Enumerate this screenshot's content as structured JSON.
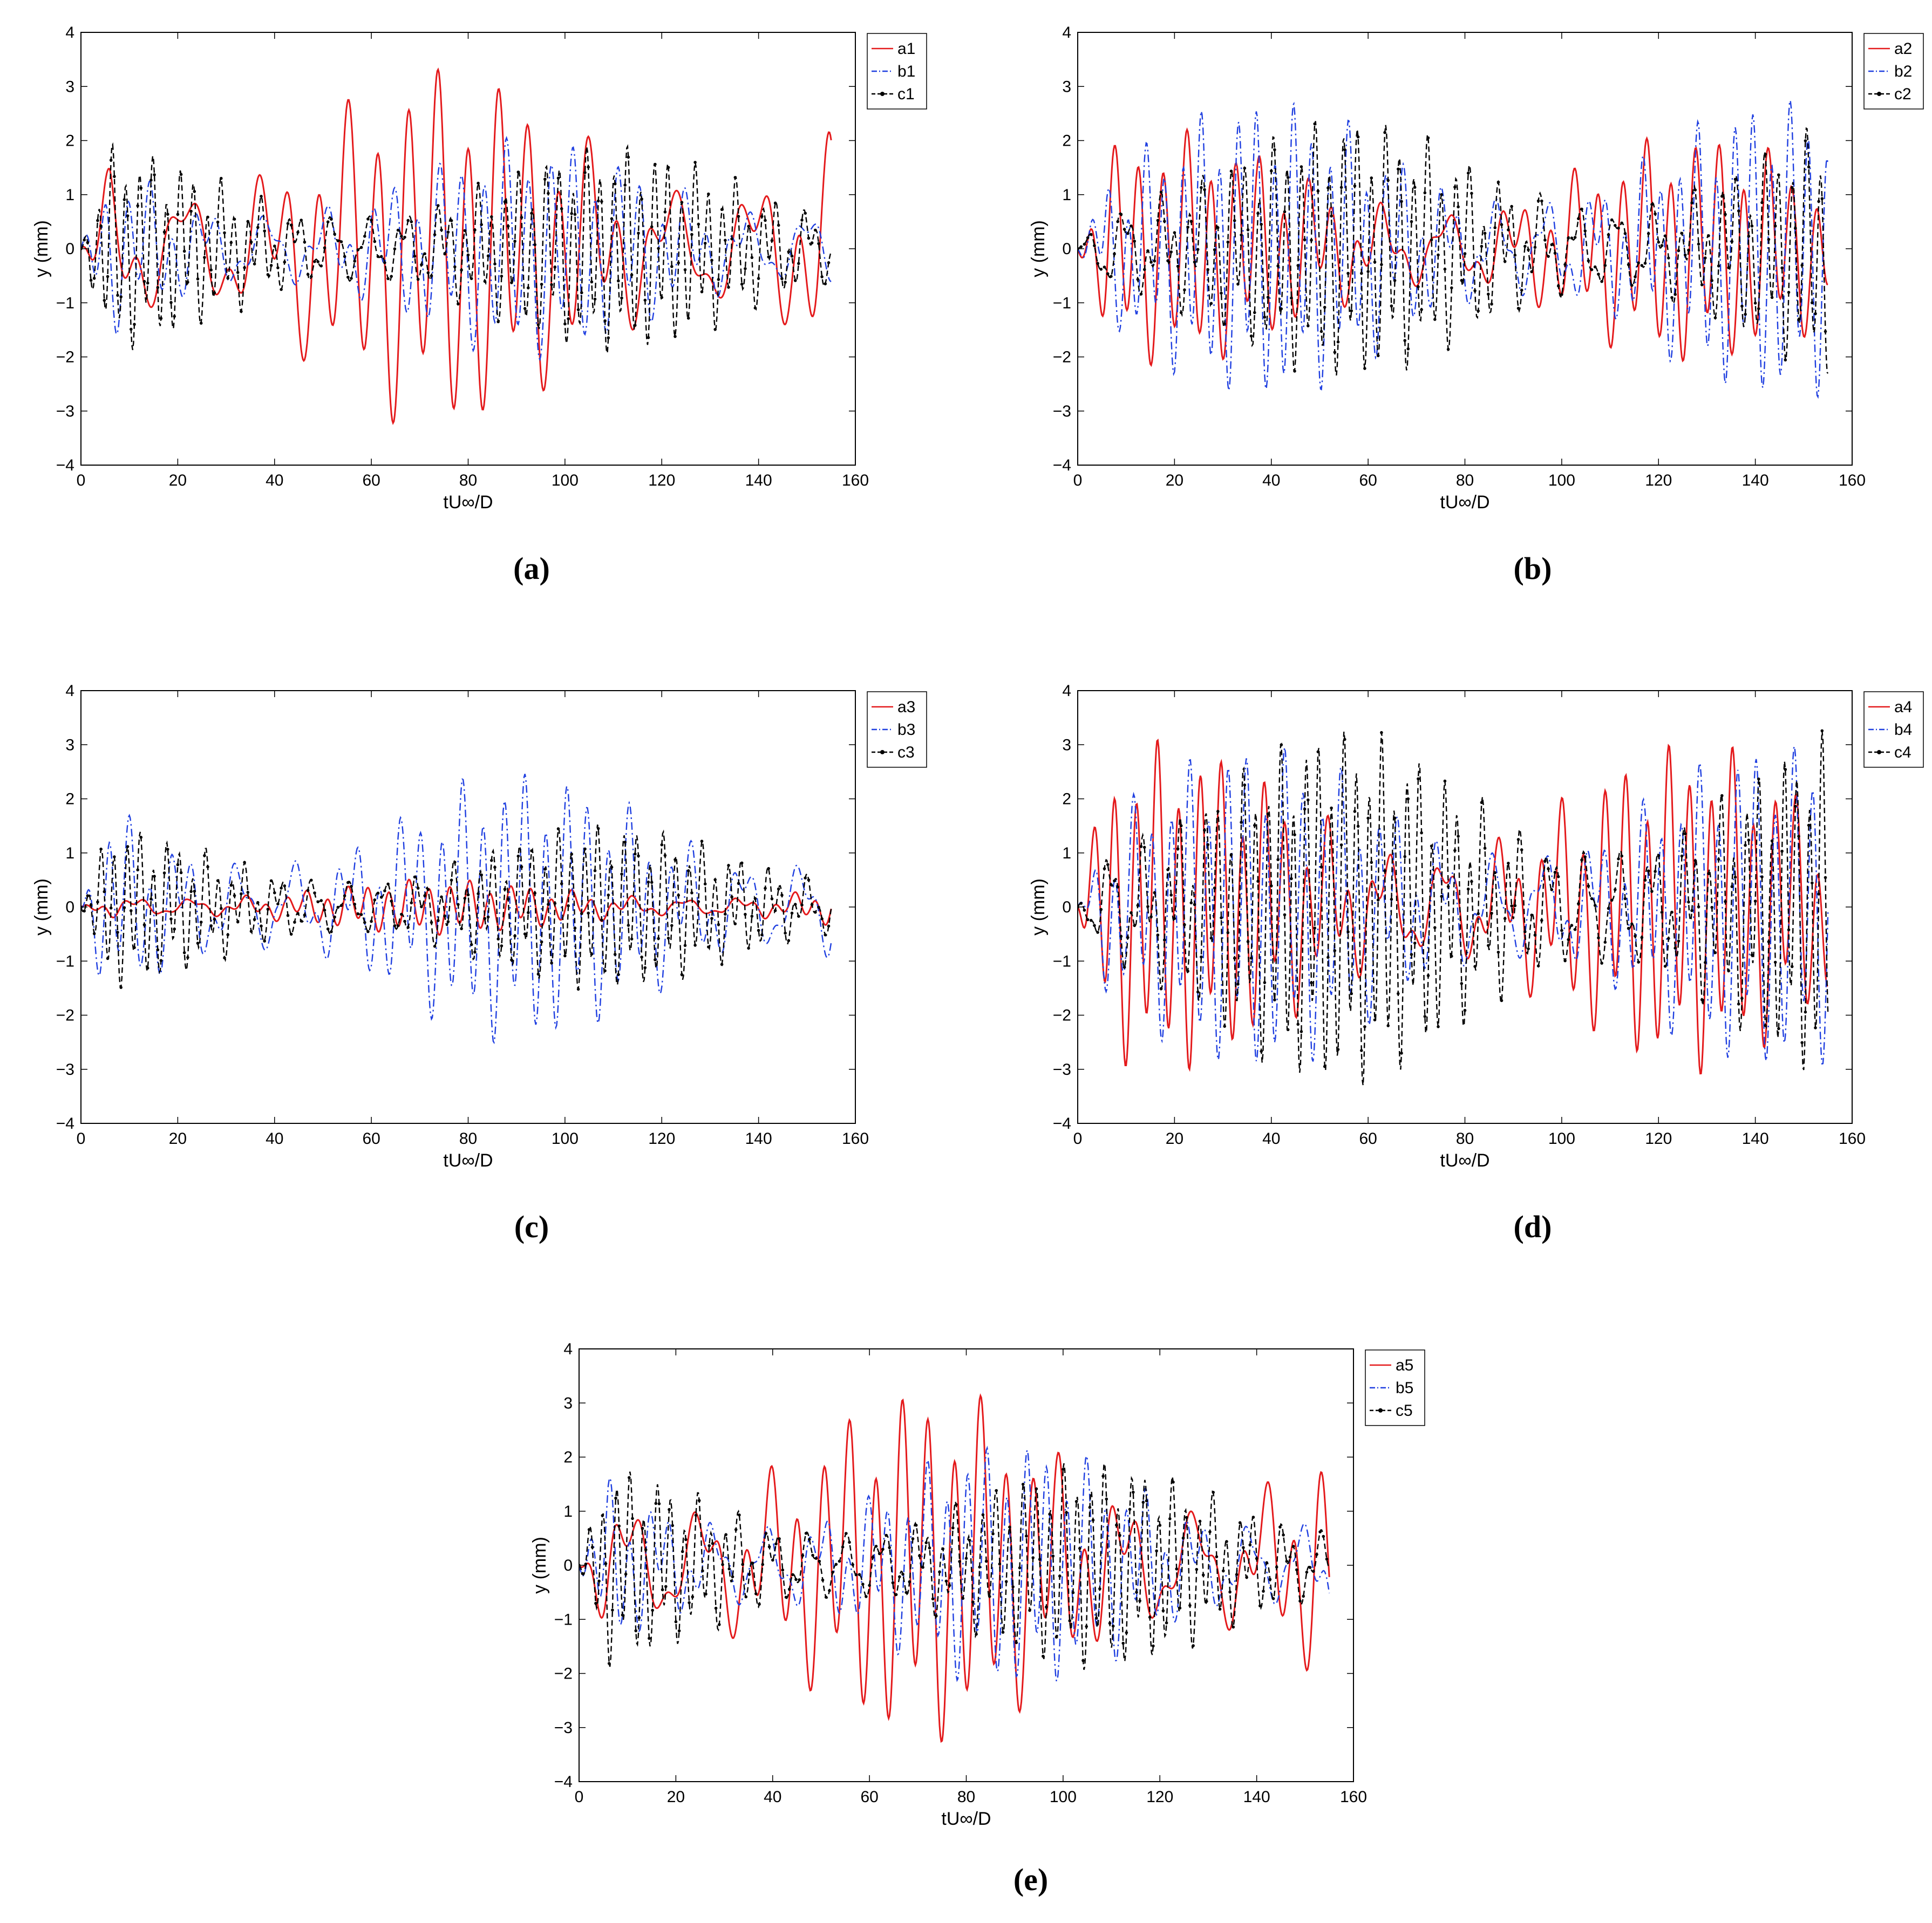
{
  "figure": {
    "captions": [
      "(a)",
      "(b)",
      "(c)",
      "(d)",
      "(e)"
    ]
  },
  "chart_data": [
    {
      "type": "line",
      "panel": "a",
      "xlabel": "tU∞/D",
      "ylabel": "y (mm)",
      "xlim": [
        0,
        160
      ],
      "ylim": [
        -4,
        4
      ],
      "xticks": [
        "0",
        "20",
        "40",
        "60",
        "80",
        "100",
        "120",
        "140",
        "160"
      ],
      "yticks": [
        "4",
        "3",
        "2",
        "1",
        "0",
        "−1",
        "−2",
        "−3",
        "−4"
      ],
      "legend_position": "top-right",
      "series": [
        {
          "name": "a1",
          "color": "#e41a1c",
          "style": "solid",
          "amplitude": 2.7,
          "period": 6.2,
          "seed": 1
        },
        {
          "name": "b1",
          "color": "#1f3fe0",
          "style": "dashdot",
          "amplitude": 1.6,
          "period": 4.6,
          "seed": 2
        },
        {
          "name": "c1",
          "color": "#000000",
          "style": "dashed-marker",
          "amplitude": 1.5,
          "period": 2.8,
          "seed": 3
        }
      ]
    },
    {
      "type": "line",
      "panel": "b",
      "xlabel": "tU∞/D",
      "ylabel": "y (mm)",
      "xlim": [
        0,
        160
      ],
      "ylim": [
        -4,
        4
      ],
      "xticks": [
        "0",
        "20",
        "40",
        "60",
        "80",
        "100",
        "120",
        "140",
        "160"
      ],
      "yticks": [
        "4",
        "3",
        "2",
        "1",
        "0",
        "−1",
        "−2",
        "−3",
        "−4"
      ],
      "legend_position": "top-right",
      "series": [
        {
          "name": "a2",
          "color": "#e41a1c",
          "style": "solid",
          "amplitude": 1.7,
          "period": 5.0,
          "seed": 4
        },
        {
          "name": "b2",
          "color": "#1f3fe0",
          "style": "dashdot",
          "amplitude": 2.2,
          "period": 3.8,
          "seed": 5
        },
        {
          "name": "c2",
          "color": "#000000",
          "style": "dashed-marker",
          "amplitude": 1.9,
          "period": 2.9,
          "seed": 6
        }
      ]
    },
    {
      "type": "line",
      "panel": "c",
      "xlabel": "tU∞/D",
      "ylabel": "y (mm)",
      "xlim": [
        0,
        160
      ],
      "ylim": [
        -4,
        4
      ],
      "xticks": [
        "0",
        "20",
        "40",
        "60",
        "80",
        "100",
        "120",
        "140",
        "160"
      ],
      "yticks": [
        "4",
        "3",
        "2",
        "1",
        "0",
        "−1",
        "−2",
        "−3",
        "−4"
      ],
      "legend_position": "top-right",
      "series": [
        {
          "name": "a3",
          "color": "#e41a1c",
          "style": "solid",
          "amplitude": 0.4,
          "period": 4.2,
          "seed": 7
        },
        {
          "name": "b3",
          "color": "#1f3fe0",
          "style": "dashdot",
          "amplitude": 2.0,
          "period": 4.3,
          "seed": 8
        },
        {
          "name": "c3",
          "color": "#000000",
          "style": "dashed-marker",
          "amplitude": 1.2,
          "period": 2.7,
          "seed": 9
        }
      ]
    },
    {
      "type": "line",
      "panel": "d",
      "xlabel": "tU∞/D",
      "ylabel": "y (mm)",
      "xlim": [
        0,
        160
      ],
      "ylim": [
        -4,
        4
      ],
      "xticks": [
        "0",
        "20",
        "40",
        "60",
        "80",
        "100",
        "120",
        "140",
        "160"
      ],
      "yticks": [
        "4",
        "3",
        "2",
        "1",
        "0",
        "−1",
        "−2",
        "−3",
        "−4"
      ],
      "legend_position": "top-right",
      "series": [
        {
          "name": "a4",
          "color": "#e41a1c",
          "style": "solid",
          "amplitude": 2.4,
          "period": 4.4,
          "seed": 10
        },
        {
          "name": "b4",
          "color": "#1f3fe0",
          "style": "dashdot",
          "amplitude": 2.4,
          "period": 3.9,
          "seed": 11
        },
        {
          "name": "c4",
          "color": "#000000",
          "style": "dashed-marker",
          "amplitude": 2.6,
          "period": 2.6,
          "seed": 12
        }
      ]
    },
    {
      "type": "line",
      "panel": "e",
      "xlabel": "tU∞/D",
      "ylabel": "y (mm)",
      "xlim": [
        0,
        160
      ],
      "ylim": [
        -4,
        4
      ],
      "xticks": [
        "0",
        "20",
        "40",
        "60",
        "80",
        "100",
        "120",
        "140",
        "160"
      ],
      "yticks": [
        "4",
        "3",
        "2",
        "1",
        "0",
        "−1",
        "−2",
        "−3",
        "−4"
      ],
      "legend_position": "top-right",
      "series": [
        {
          "name": "a5",
          "color": "#e41a1c",
          "style": "solid",
          "amplitude": 2.6,
          "period": 5.4,
          "seed": 13
        },
        {
          "name": "b5",
          "color": "#1f3fe0",
          "style": "dashdot",
          "amplitude": 1.8,
          "period": 4.1,
          "seed": 14
        },
        {
          "name": "c5",
          "color": "#000000",
          "style": "dashed-marker",
          "amplitude": 1.5,
          "period": 2.8,
          "seed": 15
        }
      ]
    }
  ]
}
